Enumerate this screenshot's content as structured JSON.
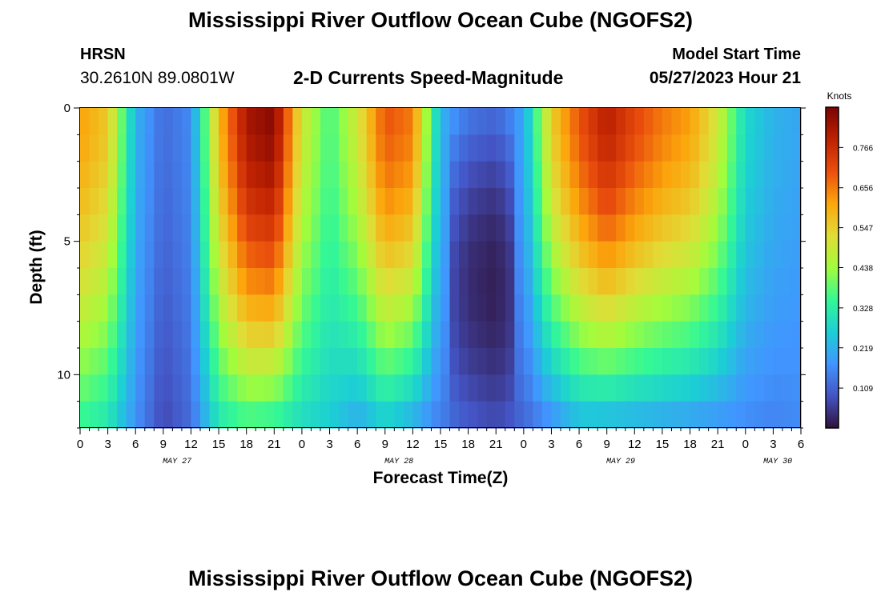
{
  "header": {
    "title": "Mississippi River Outflow Ocean Cube (NGOFS2)",
    "station": "HRSN",
    "coords": "30.2610N  89.0801W",
    "subtitle": "2-D Currents Speed-Magnitude",
    "model_start_label": "Model Start Time",
    "model_start_value": "05/27/2023 Hour 21"
  },
  "footer": {
    "title": "Mississippi River Outflow Ocean Cube (NGOFS2)"
  },
  "chart_data": {
    "type": "heatmap",
    "title": "2-D Currents Speed-Magnitude",
    "xlabel": "Forecast Time(Z)",
    "ylabel": "Depth (ft)",
    "x_range_hours": [
      0,
      78
    ],
    "y_range_ft": [
      0,
      12
    ],
    "x_tick_labels": [
      "0",
      "3",
      "6",
      "9",
      "12",
      "15",
      "18",
      "21",
      "0",
      "3",
      "6",
      "9",
      "12",
      "15",
      "18",
      "21",
      "0",
      "3",
      "6",
      "9",
      "12",
      "15",
      "18",
      "21",
      "0",
      "3",
      "6"
    ],
    "y_tick_labels": [
      "0",
      "5",
      "10"
    ],
    "date_labels": [
      {
        "label": "MAY 27",
        "hour": 10.5
      },
      {
        "label": "MAY 28",
        "hour": 34.5
      },
      {
        "label": "MAY 29",
        "hour": 58.5
      },
      {
        "label": "MAY 30",
        "hour": 75.5
      }
    ],
    "colorbar": {
      "unit_label": "Knots",
      "ticks": [
        "0.766",
        "0.656",
        "0.547",
        "0.438",
        "0.328",
        "0.219",
        "0.109"
      ],
      "range": [
        0.0,
        0.876
      ]
    },
    "surface_speed_profile": [
      {
        "hour": 0,
        "surface": 0.62,
        "bottom": 0.34
      },
      {
        "hour": 3,
        "surface": 0.56,
        "bottom": 0.3
      },
      {
        "hour": 6,
        "surface": 0.22,
        "bottom": 0.17
      },
      {
        "hour": 9,
        "surface": 0.12,
        "bottom": 0.07
      },
      {
        "hour": 12,
        "surface": 0.16,
        "bottom": 0.12
      },
      {
        "hour": 15,
        "surface": 0.58,
        "bottom": 0.3
      },
      {
        "hour": 18,
        "surface": 0.82,
        "bottom": 0.34
      },
      {
        "hour": 21,
        "surface": 0.86,
        "bottom": 0.32
      },
      {
        "hour": 24,
        "surface": 0.5,
        "bottom": 0.28
      },
      {
        "hour": 27,
        "surface": 0.36,
        "bottom": 0.26
      },
      {
        "hour": 30,
        "surface": 0.5,
        "bottom": 0.2
      },
      {
        "hour": 33,
        "surface": 0.7,
        "bottom": 0.25
      },
      {
        "hour": 36,
        "surface": 0.66,
        "bottom": 0.2
      },
      {
        "hour": 39,
        "surface": 0.22,
        "bottom": 0.14
      },
      {
        "hour": 42,
        "surface": 0.14,
        "bottom": 0.1
      },
      {
        "hour": 45,
        "surface": 0.12,
        "bottom": 0.08
      },
      {
        "hour": 48,
        "surface": 0.2,
        "bottom": 0.11
      },
      {
        "hour": 51,
        "surface": 0.55,
        "bottom": 0.16
      },
      {
        "hour": 54,
        "surface": 0.7,
        "bottom": 0.22
      },
      {
        "hour": 57,
        "surface": 0.8,
        "bottom": 0.21
      },
      {
        "hour": 60,
        "surface": 0.72,
        "bottom": 0.2
      },
      {
        "hour": 63,
        "surface": 0.66,
        "bottom": 0.19
      },
      {
        "hour": 66,
        "surface": 0.62,
        "bottom": 0.18
      },
      {
        "hour": 69,
        "surface": 0.5,
        "bottom": 0.17
      },
      {
        "hour": 72,
        "surface": 0.28,
        "bottom": 0.16
      },
      {
        "hour": 75,
        "surface": 0.22,
        "bottom": 0.15
      },
      {
        "hour": 78,
        "surface": 0.2,
        "bottom": 0.16
      }
    ]
  }
}
